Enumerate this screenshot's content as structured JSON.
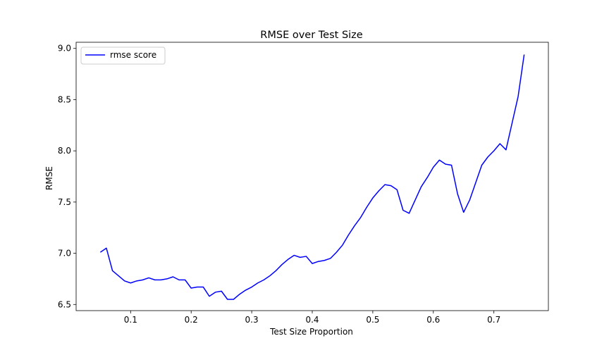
{
  "chart_data": {
    "type": "line",
    "title": "RMSE over Test Size",
    "xlabel": "Test Size Proportion",
    "ylabel": "RMSE",
    "xlim": [
      0.01,
      0.79
    ],
    "ylim": [
      6.44,
      9.06
    ],
    "xticks": [
      0.1,
      0.2,
      0.3,
      0.4,
      0.5,
      0.6,
      0.7
    ],
    "xtick_labels": [
      "0.1",
      "0.2",
      "0.3",
      "0.4",
      "0.5",
      "0.6",
      "0.7"
    ],
    "yticks": [
      6.5,
      7.0,
      7.5,
      8.0,
      8.5,
      9.0
    ],
    "ytick_labels": [
      "6.5",
      "7.0",
      "7.5",
      "8.0",
      "8.5",
      "9.0"
    ],
    "grid": false,
    "legend_position": "top-left",
    "series": [
      {
        "name": "rmse score",
        "color": "#0000ff",
        "x": [
          0.05,
          0.06,
          0.07,
          0.08,
          0.09,
          0.1,
          0.11,
          0.12,
          0.13,
          0.14,
          0.15,
          0.16,
          0.17,
          0.18,
          0.19,
          0.2,
          0.21,
          0.22,
          0.23,
          0.24,
          0.25,
          0.26,
          0.27,
          0.28,
          0.29,
          0.3,
          0.31,
          0.32,
          0.33,
          0.34,
          0.35,
          0.36,
          0.37,
          0.38,
          0.39,
          0.4,
          0.41,
          0.42,
          0.43,
          0.44,
          0.45,
          0.46,
          0.47,
          0.48,
          0.49,
          0.5,
          0.51,
          0.52,
          0.53,
          0.54,
          0.55,
          0.56,
          0.57,
          0.58,
          0.59,
          0.6,
          0.61,
          0.62,
          0.63,
          0.64,
          0.65,
          0.66,
          0.67,
          0.68,
          0.69,
          0.7,
          0.71,
          0.72,
          0.73,
          0.74,
          0.75
        ],
        "y": [
          7.01,
          7.05,
          6.83,
          6.78,
          6.73,
          6.71,
          6.73,
          6.74,
          6.76,
          6.74,
          6.74,
          6.75,
          6.77,
          6.74,
          6.74,
          6.66,
          6.67,
          6.67,
          6.58,
          6.62,
          6.63,
          6.55,
          6.55,
          6.6,
          6.64,
          6.67,
          6.71,
          6.74,
          6.78,
          6.83,
          6.89,
          6.94,
          6.98,
          6.96,
          6.97,
          6.9,
          6.92,
          6.93,
          6.95,
          7.01,
          7.08,
          7.18,
          7.27,
          7.35,
          7.45,
          7.54,
          7.61,
          7.67,
          7.66,
          7.62,
          7.42,
          7.39,
          7.52,
          7.65,
          7.74,
          7.84,
          7.91,
          7.87,
          7.86,
          7.58,
          7.4,
          7.52,
          7.69,
          7.86,
          7.94,
          8.0,
          8.07,
          8.01,
          8.27,
          8.53,
          8.94
        ]
      }
    ]
  }
}
